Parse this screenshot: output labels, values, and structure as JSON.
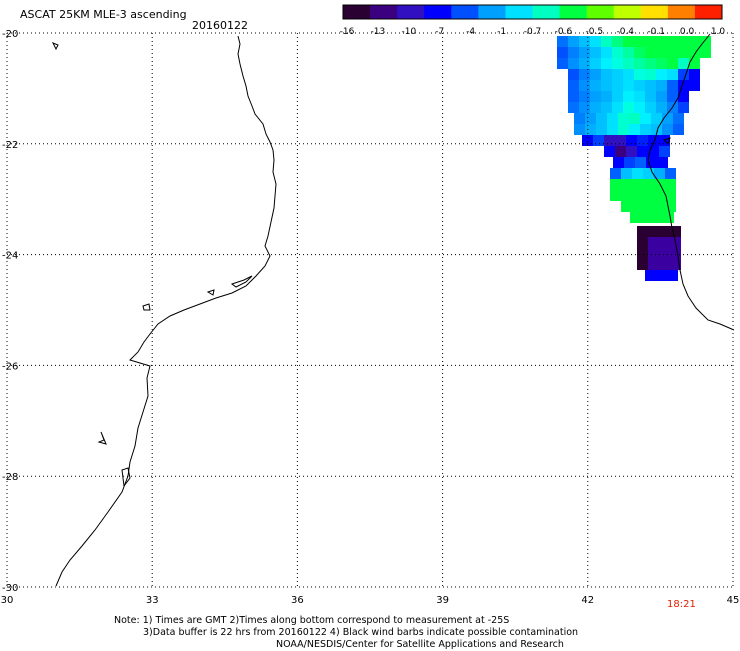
{
  "header": {
    "title": "ASCAT 25KM MLE-3 ascending",
    "date": "20160122"
  },
  "colorbar": {
    "tick_labels": [
      "-16",
      "-13",
      "-10",
      "-7",
      "-4",
      "-1",
      "-0.7",
      "-0.6",
      "-0.5",
      "-0.4",
      "-0.1",
      "0.0",
      "1.0"
    ],
    "colors": [
      "#2a0033",
      "#3a0080",
      "#3010c0",
      "#0000ff",
      "#0050ff",
      "#00a0ff",
      "#00e0ff",
      "#00ffc0",
      "#00ff40",
      "#60ff00",
      "#c0ff00",
      "#ffe000",
      "#ff8000",
      "#ff2000"
    ]
  },
  "map": {
    "lon_labels": [
      "30",
      "33",
      "36",
      "39",
      "42",
      "45"
    ],
    "lat_labels": [
      "-20",
      "-22",
      "-24",
      "-26",
      "-28",
      "-30"
    ]
  },
  "time_label": "18:21",
  "notes": {
    "line1": "Note: 1) Times are GMT 2)Times along bottom correspond to measurement at -25S",
    "line2": "3)Data buffer is 22 hrs from 20160122 4) Black wind barbs indicate possible contamination",
    "line3": "NOAA/NESDIS/Center for Satellite Applications and Research"
  }
}
